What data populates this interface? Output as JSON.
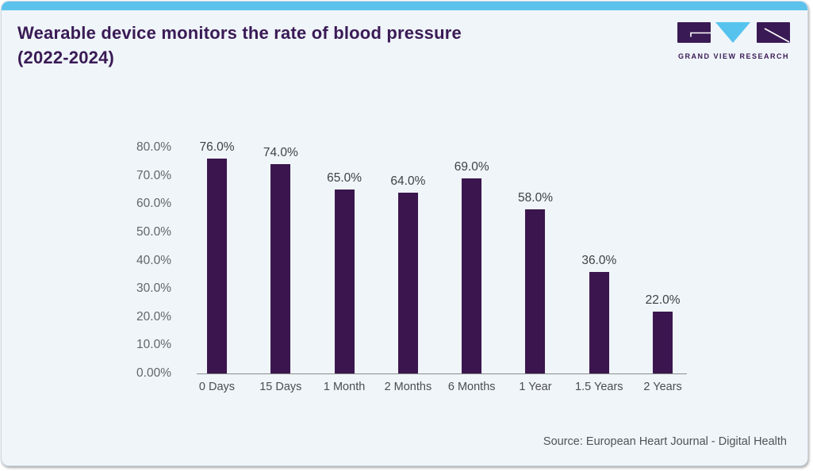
{
  "header": {
    "title": "Wearable device monitors the rate of blood pressure (2022-2024)",
    "logo_text": "GRAND VIEW RESEARCH"
  },
  "footer": {
    "source": "Source: European Heart Journal - Digital Health"
  },
  "colors": {
    "accent_blue": "#5bc2ec",
    "brand_purple": "#3a1a55",
    "bar_purple": "#3b154e",
    "logo_triangle_blue": "#56c3ee",
    "background": "#eff5f9",
    "axis_line": "#8d8d8d"
  },
  "chart_data": {
    "type": "bar",
    "title": "Wearable device monitors the rate of blood pressure (2022-2024)",
    "categories": [
      "0 Days",
      "15 Days",
      "1 Month",
      "2 Months",
      "6 Months",
      "1 Year",
      "1.5 Years",
      "2 Years"
    ],
    "values": [
      76.0,
      74.0,
      65.0,
      64.0,
      69.0,
      58.0,
      36.0,
      22.0
    ],
    "value_labels": [
      "76.0%",
      "74.0%",
      "65.0%",
      "64.0%",
      "69.0%",
      "58.0%",
      "36.0%",
      "22.0%"
    ],
    "xlabel": "",
    "ylabel": "",
    "ylim": [
      0,
      80
    ],
    "ytick_values": [
      80,
      70,
      60,
      50,
      40,
      30,
      20,
      10,
      0
    ],
    "ytick_labels": [
      "80.0%",
      "70.0%",
      "60.0%",
      "50.0%",
      "40.0%",
      "30.0%",
      "20.0%",
      "10.0%",
      "0.00%"
    ],
    "grid": false,
    "legend": false,
    "bar_color": "#3b154e",
    "source": "Source: European Heart Journal - Digital Health"
  }
}
